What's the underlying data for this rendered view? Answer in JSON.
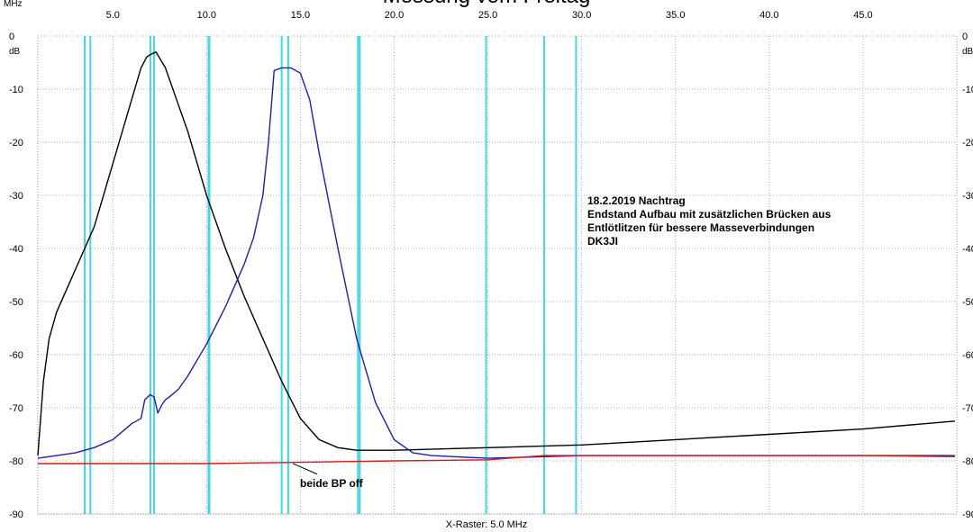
{
  "chart_data": {
    "type": "line",
    "title": "Messung vom Freitag",
    "x_unit": "MHz",
    "y_unit": "dB",
    "x_raster_label": "X-Raster: 5.0 MHz",
    "xlim": [
      1.0,
      50.0
    ],
    "ylim": [
      -90,
      0
    ],
    "x_ticks": [
      5.0,
      10.0,
      15.0,
      20.0,
      25.0,
      30.0,
      35.0,
      40.0,
      45.0
    ],
    "x_tick_labels": [
      "5.0",
      "10.0",
      "15.0",
      "20.0",
      "25.0",
      "30.0",
      "35.0",
      "40.0",
      "45.0"
    ],
    "y_ticks": [
      0,
      -10,
      -20,
      -30,
      -40,
      -50,
      -60,
      -70,
      -80,
      -90
    ],
    "y_tick_labels": [
      "0",
      "-10",
      "-20",
      "-30",
      "-40",
      "-50",
      "-60",
      "-70",
      "-80",
      "-90"
    ],
    "grid": true,
    "markers_mhz": [
      3.5,
      3.8,
      7.0,
      7.2,
      10.1,
      10.15,
      14.0,
      14.35,
      18.07,
      18.17,
      24.9,
      28.0,
      29.7
    ],
    "series": [
      {
        "color": "#000000",
        "x": [
          1.0,
          1.3,
          1.6,
          2.0,
          2.5,
          3.0,
          3.5,
          4.0,
          4.5,
          5.0,
          5.5,
          6.0,
          6.5,
          6.8,
          7.0,
          7.3,
          7.8,
          8.5,
          9.0,
          9.5,
          10.0,
          11.0,
          12.0,
          13.0,
          14.0,
          15.0,
          16.0,
          17.0,
          18.0,
          20.0,
          25.0,
          30.0,
          35.0,
          40.0,
          45.0,
          49.9
        ],
        "y": [
          -79,
          -65,
          -57,
          -52,
          -48,
          -44,
          -40,
          -36,
          -30,
          -24,
          -18,
          -12,
          -6,
          -4,
          -3.5,
          -3,
          -6,
          -13,
          -18,
          -24,
          -30,
          -40,
          -49,
          -57,
          -65,
          -72,
          -76,
          -77.5,
          -78,
          -78,
          -77.5,
          -77,
          -76,
          -75,
          -74,
          -72.5
        ]
      },
      {
        "color": "#1f1fa8",
        "x": [
          1.0,
          2.0,
          3.0,
          4.0,
          5.0,
          6.0,
          6.5,
          6.7,
          7.0,
          7.2,
          7.4,
          7.6,
          7.8,
          8.0,
          8.5,
          9.0,
          10.0,
          11.0,
          12.0,
          12.5,
          13.0,
          13.3,
          13.6,
          14.0,
          14.5,
          15.0,
          15.5,
          16.0,
          17.0,
          18.0,
          19.0,
          20.0,
          21.0,
          22.0,
          25.0,
          30.0,
          35.0,
          40.0,
          45.0,
          49.9
        ],
        "y": [
          -79.5,
          -79,
          -78.5,
          -77.5,
          -76,
          -73,
          -72,
          -68.5,
          -67.5,
          -68,
          -71,
          -69.5,
          -68.5,
          -68,
          -66.5,
          -64,
          -58,
          -51,
          -43,
          -38,
          -30,
          -20,
          -6.5,
          -6,
          -6,
          -7,
          -12,
          -22,
          -40,
          -57,
          -69,
          -76,
          -78.5,
          -79,
          -79.5,
          -79,
          -79,
          -79,
          -79,
          -79
        ]
      },
      {
        "color": "#cc1f1f",
        "x": [
          1.0,
          10.0,
          20.0,
          25.0,
          28.0,
          30.0,
          35.0,
          40.0,
          45.0,
          49.9
        ],
        "y": [
          -80.5,
          -80.5,
          -80,
          -79.8,
          -79,
          -79,
          -79,
          -79,
          -79,
          -79.2
        ]
      }
    ],
    "annotation": "beide BP off",
    "note": [
      "18.2.2019 Nachtrag",
      "Endstand Aufbau mit zusätzlichen Brücken aus",
      "Entlötlitzen für bessere Masseverbindungen",
      "DK3JI"
    ]
  }
}
